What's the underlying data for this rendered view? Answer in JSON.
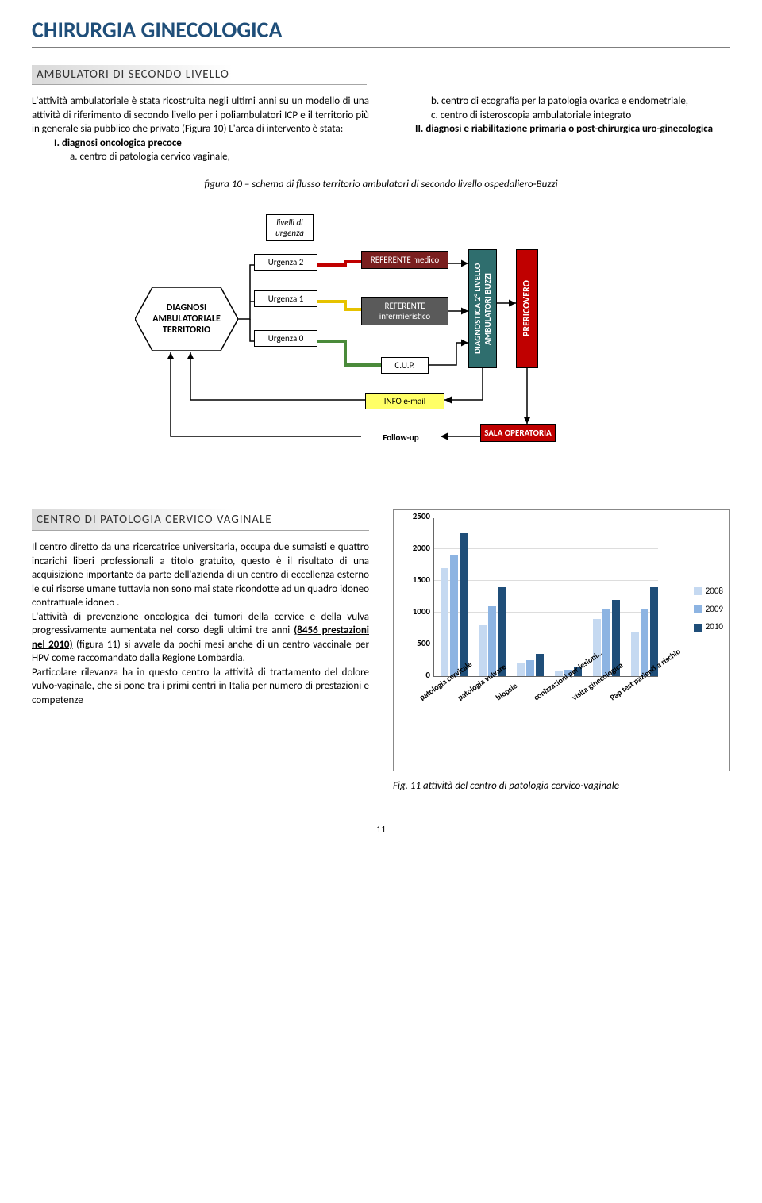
{
  "title": "CHIRURGIA GINECOLOGICA",
  "section1_heading": "AMBULATORI DI SECONDO LIVELLO",
  "intro_para": "L'attività ambulatoriale è stata ricostruita negli ultimi anni su un modello di una attività di riferimento di secondo livello per i poliambulatori ICP e il territorio più in generale sia pubblico che privato (Figura 10) L'area di intervento è stata:",
  "list_I": "I.    diagnosi oncologica precoce",
  "list_a": "a.   centro di patologia cervico vaginale,",
  "list_b": "b.  centro di ecografia per la patologia ovarica e endometriale,",
  "list_c": "c.   centro   di   isteroscopia   ambulatoriale integrato",
  "list_II": "II.    diagnosi e riabilitazione primaria o post-chirurgica uro-ginecologica",
  "fig10_caption": "figura  10 – schema di flusso territorio ambulatori di secondo livello ospedaliero-Buzzi",
  "flow": {
    "hexagon": "DIAGNOSI AMBULATORIALE TERRITORIO",
    "livelli": "livelli di urgenza",
    "urg2": "Urgenza 2",
    "urg1": "Urgenza 1",
    "urg0": "Urgenza 0",
    "ref_medico": "REFERENTE medico",
    "ref_inf": "REFERENTE infermieristico",
    "cup": "C.U.P.",
    "diag": "DIAGNOSTICA 2° LIVELLO AMBULATORI  BUZZI",
    "pre": "PRERICOVERO",
    "info": "INFO e-mail",
    "follow": "Follow-up",
    "sala": "SALA OPERATORIA",
    "colors": {
      "ref_medico_bg": "#7a1f1f",
      "ref_inf_bg": "#5a5a5a",
      "urg2_line": "#c00000",
      "urg1_line": "#e6c200",
      "urg0_line": "#4a8a3a",
      "diag_bg": "#2f6e6e",
      "pre_bg": "#c00000",
      "sala_bg": "#c00000",
      "info_bg": "#ffff66"
    }
  },
  "section2_heading": "CENTRO   DI   PATOLOGIA   CERVICO VAGINALE",
  "para2": "Il centro diretto da una ricercatrice universitaria, occupa due sumaisti e  quattro incarichi liberi professionali a titolo gratuito, questo è il risultato di una acquisizione importante da parte dell'azienda di un centro di eccellenza esterno le cui risorse umane tuttavia non sono mai state ricondotte ad un quadro idoneo contrattuale idoneo .",
  "para3a": "L'attività di prevenzione oncologica dei tumori della cervice e della vulva progressivamente aumentata nel corso degli ultimi tre anni ",
  "para3b": "(8456 prestazioni nel 2010)",
  "para3c": " (figura 11) si avvale da pochi mesi anche di un centro vaccinale per HPV come raccomandato dalla Regione Lombardia.",
  "para4": "Particolare rilevanza ha in questo centro la attività di trattamento del dolore vulvo-vaginale, che si pone tra i primi centri in Italia per numero di prestazioni e competenze",
  "chart": {
    "ylim": [
      0,
      2500
    ],
    "ytick_step": 500,
    "yticks": [
      "0",
      "500",
      "1000",
      "1500",
      "2000",
      "2500"
    ],
    "categories": [
      "patologia cervicale",
      "patologia vulvare",
      "biopsie",
      "conizzazioni per lesioni…",
      "visita ginecologica",
      "Pap test pazienti a rischio"
    ],
    "series": [
      {
        "name": "2008",
        "color": "#c5d9f1",
        "values": [
          1700,
          800,
          200,
          80,
          900,
          700
        ]
      },
      {
        "name": "2009",
        "color": "#8db4e2",
        "values": [
          1900,
          1100,
          250,
          100,
          1050,
          1050
        ]
      },
      {
        "name": "2010",
        "color": "#1f4e79",
        "values": [
          2250,
          1400,
          350,
          130,
          1200,
          1400
        ]
      }
    ]
  },
  "fig11_caption": "Fig. 11 attività del centro di patologia cervico-vaginale",
  "page_number": "11"
}
